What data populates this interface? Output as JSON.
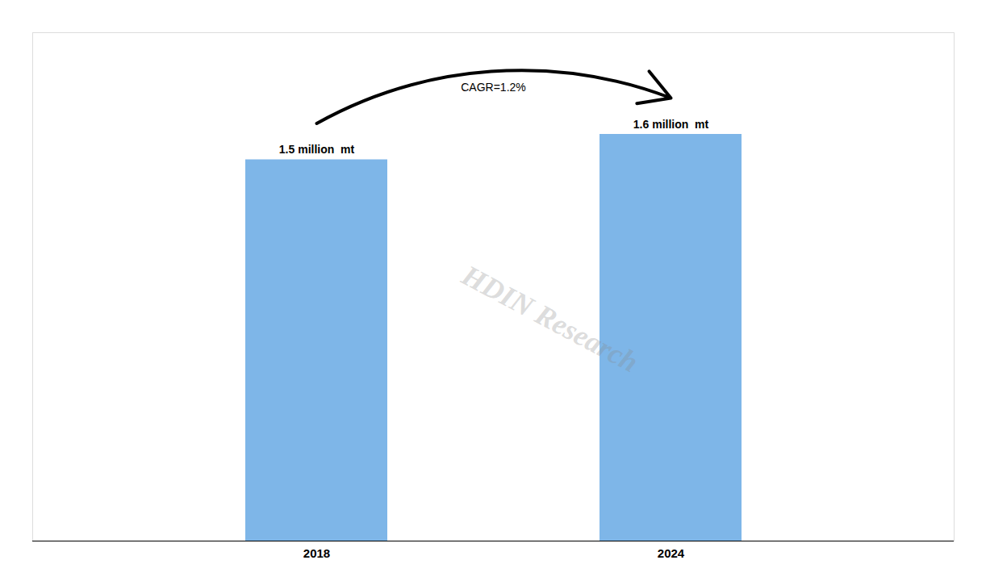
{
  "chart_data": {
    "type": "bar",
    "categories": [
      "2018",
      "2024"
    ],
    "values": [
      1.5,
      1.6
    ],
    "value_labels": [
      "1.5 million  mt",
      "1.6 million  mt"
    ],
    "data_labels": true,
    "color": "#7EB6E8",
    "ylim": [
      0,
      2.0
    ],
    "tick_labels": "x",
    "grid": false,
    "annotations": [
      "CAGR=1.2%"
    ],
    "watermark": "HDIN Research"
  }
}
